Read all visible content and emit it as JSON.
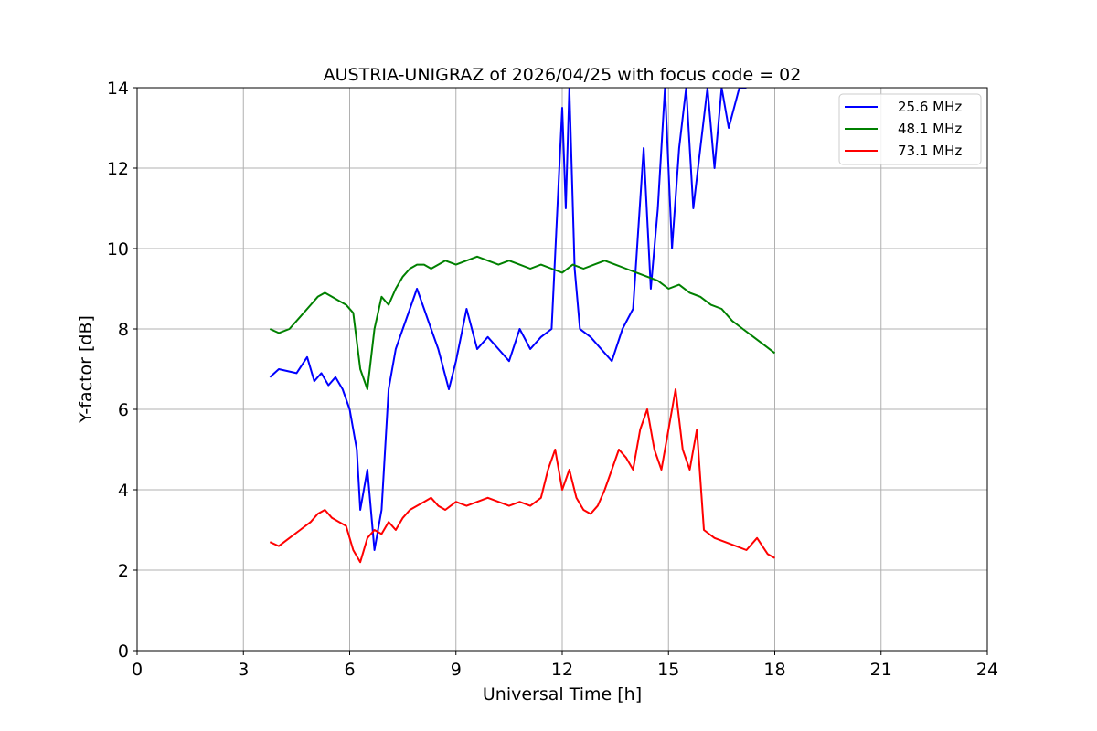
{
  "chart_data": {
    "type": "line",
    "title": "AUSTRIA-UNIGRAZ of 2026/04/25 with focus code = 02",
    "xlabel": "Universal Time [h]",
    "ylabel": "Y-factor [dB]",
    "xlim": [
      0,
      24
    ],
    "ylim": [
      0,
      14
    ],
    "xticks": [
      0,
      3,
      6,
      9,
      12,
      15,
      18,
      21,
      24
    ],
    "yticks": [
      0,
      2,
      4,
      6,
      8,
      10,
      12,
      14
    ],
    "grid": true,
    "legend_position": "top-right",
    "series": [
      {
        "name": "25.6 MHz",
        "color": "#0000ff",
        "x": [
          3.75,
          4.0,
          4.5,
          4.8,
          5.0,
          5.2,
          5.4,
          5.6,
          5.8,
          6.0,
          6.2,
          6.3,
          6.5,
          6.7,
          6.9,
          7.1,
          7.3,
          7.5,
          7.7,
          7.9,
          8.1,
          8.3,
          8.5,
          8.8,
          9.0,
          9.3,
          9.6,
          9.9,
          10.2,
          10.5,
          10.8,
          11.1,
          11.4,
          11.7,
          12.0,
          12.1,
          12.2,
          12.35,
          12.5,
          12.8,
          13.1,
          13.4,
          13.7,
          14.0,
          14.3,
          14.5,
          14.7,
          14.9,
          15.1,
          15.3,
          15.5,
          15.7,
          15.9,
          16.1,
          16.3,
          16.5,
          16.7,
          17.0,
          17.2
        ],
        "y": [
          6.8,
          7.0,
          6.9,
          7.3,
          6.7,
          6.9,
          6.6,
          6.8,
          6.5,
          6.0,
          5.0,
          3.5,
          4.5,
          2.5,
          3.5,
          6.5,
          7.5,
          8.0,
          8.5,
          9.0,
          8.5,
          8.0,
          7.5,
          6.5,
          7.2,
          8.5,
          7.5,
          7.8,
          7.5,
          7.2,
          8.0,
          7.5,
          7.8,
          8.0,
          13.5,
          11.0,
          14.0,
          9.5,
          8.0,
          7.8,
          7.5,
          7.2,
          8.0,
          8.5,
          12.5,
          9.0,
          11.0,
          14.0,
          10.0,
          12.5,
          14.0,
          11.0,
          12.5,
          14.0,
          12.0,
          14.0,
          13.0,
          14.0,
          14.0
        ]
      },
      {
        "name": "48.1 MHz",
        "color": "#008000",
        "x": [
          3.75,
          4.0,
          4.3,
          4.6,
          4.9,
          5.1,
          5.3,
          5.5,
          5.7,
          5.9,
          6.1,
          6.3,
          6.5,
          6.7,
          6.9,
          7.1,
          7.3,
          7.5,
          7.7,
          7.9,
          8.1,
          8.3,
          8.5,
          8.7,
          9.0,
          9.3,
          9.6,
          9.9,
          10.2,
          10.5,
          10.8,
          11.1,
          11.4,
          11.7,
          12.0,
          12.3,
          12.6,
          12.9,
          13.2,
          13.5,
          13.8,
          14.1,
          14.4,
          14.7,
          15.0,
          15.3,
          15.6,
          15.9,
          16.2,
          16.5,
          16.8,
          17.1,
          17.4,
          17.7,
          18.0
        ],
        "y": [
          8.0,
          7.9,
          8.0,
          8.3,
          8.6,
          8.8,
          8.9,
          8.8,
          8.7,
          8.6,
          8.4,
          7.0,
          6.5,
          8.0,
          8.8,
          8.6,
          9.0,
          9.3,
          9.5,
          9.6,
          9.6,
          9.5,
          9.6,
          9.7,
          9.6,
          9.7,
          9.8,
          9.7,
          9.6,
          9.7,
          9.6,
          9.5,
          9.6,
          9.5,
          9.4,
          9.6,
          9.5,
          9.6,
          9.7,
          9.6,
          9.5,
          9.4,
          9.3,
          9.2,
          9.0,
          9.1,
          8.9,
          8.8,
          8.6,
          8.5,
          8.2,
          8.0,
          7.8,
          7.6,
          7.4
        ]
      },
      {
        "name": "73.1 MHz",
        "color": "#ff0000",
        "x": [
          3.75,
          4.0,
          4.3,
          4.6,
          4.9,
          5.1,
          5.3,
          5.5,
          5.7,
          5.9,
          6.1,
          6.3,
          6.5,
          6.7,
          6.9,
          7.1,
          7.3,
          7.5,
          7.7,
          7.9,
          8.1,
          8.3,
          8.5,
          8.7,
          9.0,
          9.3,
          9.6,
          9.9,
          10.2,
          10.5,
          10.8,
          11.1,
          11.4,
          11.6,
          11.8,
          12.0,
          12.2,
          12.4,
          12.6,
          12.8,
          13.0,
          13.2,
          13.4,
          13.6,
          13.8,
          14.0,
          14.2,
          14.4,
          14.6,
          14.8,
          15.0,
          15.2,
          15.4,
          15.6,
          15.8,
          16.0,
          16.3,
          16.6,
          16.9,
          17.2,
          17.5,
          17.8,
          18.0
        ],
        "y": [
          2.7,
          2.6,
          2.8,
          3.0,
          3.2,
          3.4,
          3.5,
          3.3,
          3.2,
          3.1,
          2.5,
          2.2,
          2.8,
          3.0,
          2.9,
          3.2,
          3.0,
          3.3,
          3.5,
          3.6,
          3.7,
          3.8,
          3.6,
          3.5,
          3.7,
          3.6,
          3.7,
          3.8,
          3.7,
          3.6,
          3.7,
          3.6,
          3.8,
          4.5,
          5.0,
          4.0,
          4.5,
          3.8,
          3.5,
          3.4,
          3.6,
          4.0,
          4.5,
          5.0,
          4.8,
          4.5,
          5.5,
          6.0,
          5.0,
          4.5,
          5.5,
          6.5,
          5.0,
          4.5,
          5.5,
          3.0,
          2.8,
          2.7,
          2.6,
          2.5,
          2.8,
          2.4,
          2.3
        ]
      }
    ]
  }
}
